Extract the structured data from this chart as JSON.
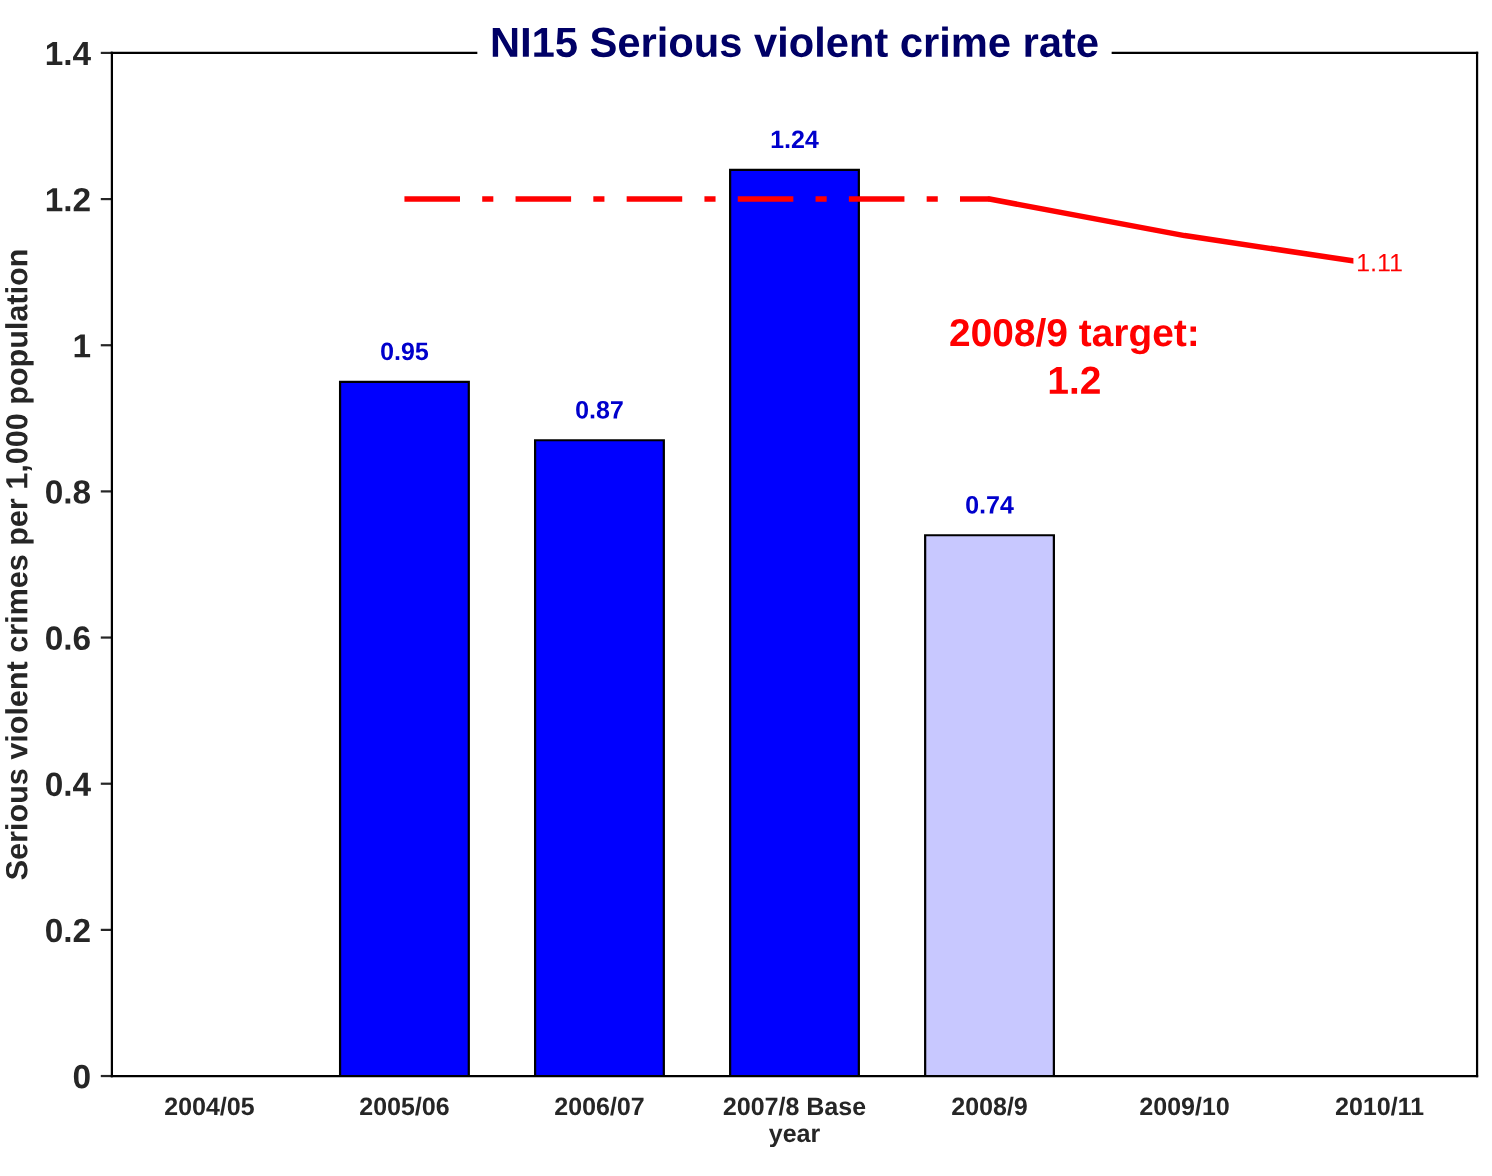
{
  "chart_data": {
    "type": "bar",
    "title": "NI15 Serious violent crime rate",
    "ylabel": "Serious violent crimes per 1,000 population",
    "categories": [
      "2004/05",
      "2005/06",
      "2006/07",
      "2007/8 Base\nyear",
      "2008/9",
      "2009/10",
      "2010/11"
    ],
    "series": [
      {
        "colors": [
          "#0000ff",
          "#0000ff",
          "#0000ff",
          "#0000ff",
          "#c8c8ff",
          "#0000ff",
          "#0000ff"
        ],
        "values": [
          null,
          0.95,
          0.87,
          1.24,
          0.74,
          null,
          null
        ],
        "value_labels": [
          null,
          "0.95",
          "0.87",
          "1.24",
          "0.74",
          null,
          null
        ]
      },
      {
        "type": "line",
        "color": "#ff0000",
        "line_style": "dashed",
        "values": [
          null,
          1.2,
          1.2,
          1.2,
          1.2,
          null,
          null
        ]
      },
      {
        "type": "line",
        "color": "#ff0000",
        "line_style": "solid",
        "values": [
          null,
          null,
          null,
          null,
          1.2,
          1.15,
          1.11
        ],
        "value_labels": [
          null,
          null,
          null,
          null,
          null,
          null,
          "1.11"
        ]
      }
    ],
    "annotations": [
      "2008/9 target:\n1.2"
    ],
    "ylim": [
      0,
      1.4
    ],
    "yticks": [
      0,
      0.2,
      0.4,
      0.6,
      0.8,
      1,
      1.2,
      1.4
    ],
    "grid": false,
    "legend": false
  }
}
